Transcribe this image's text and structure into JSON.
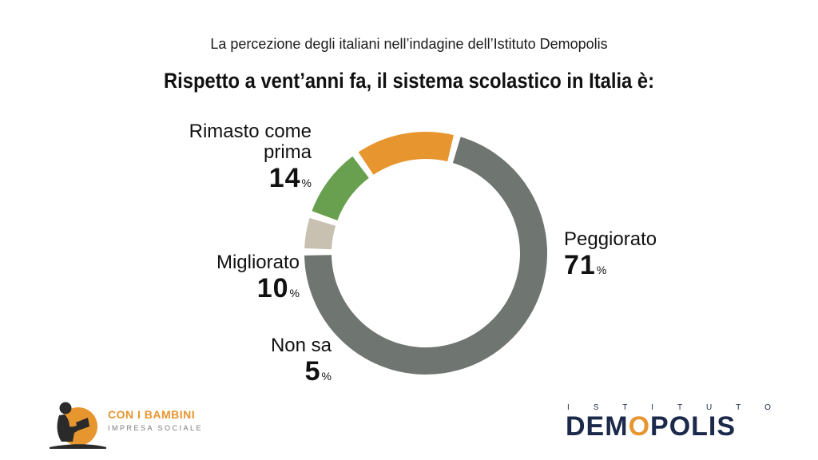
{
  "header": {
    "subtitle": "La percezione degli italiani nell’indagine dell’Istituto Demopolis",
    "title": "Rispetto a vent’anni fa, il sistema scolastico in Italia è:"
  },
  "chart_data": {
    "type": "pie",
    "title": "Rispetto a vent’anni fa, il sistema scolastico in Italia è:",
    "subtitle": "La percezione degli italiani nell’indagine dell’Istituto Demopolis",
    "categories": [
      "Peggiorato",
      "Non sa",
      "Migliorato",
      "Rimasto come prima"
    ],
    "values": [
      71,
      5,
      10,
      14
    ],
    "colors": [
      "#6f7571",
      "#c8c1b2",
      "#69a04f",
      "#e7952f"
    ],
    "value_suffix": "%",
    "donut": true
  },
  "labels": {
    "rimasto": {
      "line1": "Rimasto come",
      "line2": "prima",
      "value": "14",
      "unit": "%"
    },
    "migliorato": {
      "name": "Migliorato",
      "value": "10",
      "unit": "%"
    },
    "nonsa": {
      "name": "Non sa",
      "value": "5",
      "unit": "%"
    },
    "peggiorato": {
      "name": "Peggiorato",
      "value": "71",
      "unit": "%"
    }
  },
  "logos": {
    "con_i_bambini": {
      "name": "CON I BAMBINI",
      "tagline": "IMPRESA SOCIALE"
    },
    "demopolis": {
      "top_letters": [
        "I",
        "S",
        "T",
        "I",
        "T",
        "U",
        "T",
        "O"
      ],
      "name_a": "DEM",
      "name_o": "O",
      "name_b": "POLIS"
    }
  }
}
